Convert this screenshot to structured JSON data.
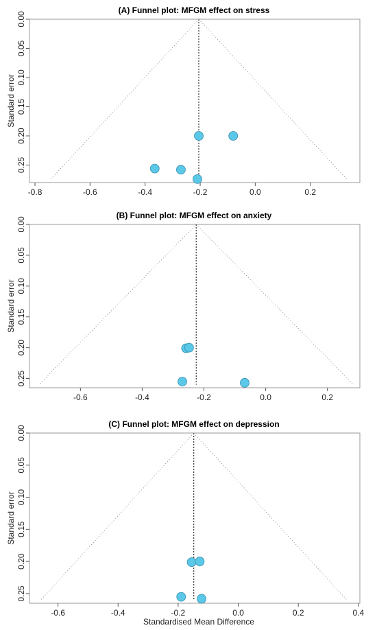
{
  "chart_data": [
    {
      "type": "scatter",
      "title": "(A) Funnel plot: MFGM effect on stress",
      "xlabel": "",
      "ylabel": "Standard error",
      "xlim": [
        -0.82,
        0.38
      ],
      "ylim": [
        0.28,
        0.0
      ],
      "y_reversed": true,
      "x_ticks": [
        "-0.8",
        "-0.6",
        "-0.4",
        "-0.2",
        "0.0",
        "0.2"
      ],
      "y_ticks": [
        "0.00",
        "0.05",
        "0.10",
        "0.15",
        "0.20",
        "0.25"
      ],
      "pooled_estimate": -0.205,
      "funnel_max_se": 0.275,
      "points": [
        {
          "x": -0.205,
          "y": 0.2
        },
        {
          "x": -0.08,
          "y": 0.2
        },
        {
          "x": -0.365,
          "y": 0.256
        },
        {
          "x": -0.27,
          "y": 0.258
        },
        {
          "x": -0.21,
          "y": 0.274
        }
      ],
      "point_color": "#5bc8e8"
    },
    {
      "type": "scatter",
      "title": "(B) Funnel plot: MFGM effect on anxiety",
      "xlabel": "",
      "ylabel": "Standard error",
      "xlim": [
        -0.765,
        0.305
      ],
      "ylim": [
        0.265,
        0.0
      ],
      "y_reversed": true,
      "x_ticks": [
        "-0.6",
        "-0.4",
        "-0.2",
        "0.0",
        "0.2"
      ],
      "y_ticks": [
        "0.00",
        "0.05",
        "0.10",
        "0.15",
        "0.20",
        "0.25"
      ],
      "pooled_estimate": -0.225,
      "funnel_max_se": 0.26,
      "points": [
        {
          "x": -0.258,
          "y": 0.201
        },
        {
          "x": -0.248,
          "y": 0.2
        },
        {
          "x": -0.27,
          "y": 0.255
        },
        {
          "x": -0.068,
          "y": 0.257
        }
      ],
      "point_color": "#5bc8e8"
    },
    {
      "type": "scatter",
      "title": "(C) Funnel plot: MFGM effect on depression",
      "xlabel": "Standardised Mean Difference",
      "ylabel": "Standard error",
      "xlim": [
        -0.695,
        0.405
      ],
      "ylim": [
        0.265,
        0.0
      ],
      "y_reversed": true,
      "x_ticks": [
        "-0.6",
        "-0.4",
        "-0.2",
        "0.0",
        "0.2",
        "0.4"
      ],
      "y_ticks": [
        "0.00",
        "0.05",
        "0.10",
        "0.15",
        "0.20",
        "0.25"
      ],
      "pooled_estimate": -0.148,
      "funnel_max_se": 0.26,
      "points": [
        {
          "x": -0.155,
          "y": 0.201
        },
        {
          "x": -0.128,
          "y": 0.2
        },
        {
          "x": -0.19,
          "y": 0.255
        },
        {
          "x": -0.122,
          "y": 0.258
        }
      ],
      "point_color": "#5bc8e8"
    }
  ]
}
